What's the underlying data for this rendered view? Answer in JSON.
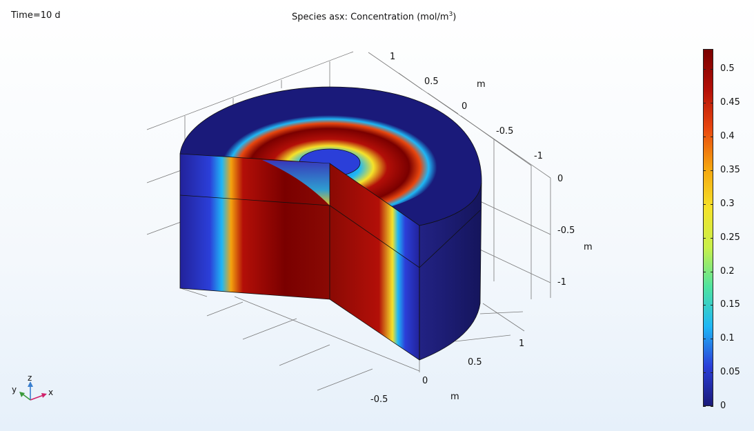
{
  "header": {
    "time_label": "Time=10 d",
    "plot_title_prefix": "Species asx:  Concentration (mol/m",
    "plot_title_sup": "3",
    "plot_title_suffix": ")"
  },
  "axes": {
    "unit": "m",
    "back_y_ticks": [
      "1",
      "0.5",
      "0",
      "-0.5",
      "-1"
    ],
    "right_z_ticks": [
      "0",
      "-0.5",
      "-1"
    ],
    "front_x_ticks": [
      "1",
      "0.5",
      "0",
      "-0.5"
    ]
  },
  "colorbar": {
    "min": 0,
    "max": 0.53,
    "tick_labels": [
      "0.5",
      "0.45",
      "0.4",
      "0.35",
      "0.3",
      "0.25",
      "0.2",
      "0.15",
      "0.1",
      "0.05",
      "0"
    ],
    "tick_values": [
      0.5,
      0.45,
      0.4,
      0.35,
      0.3,
      0.25,
      0.2,
      0.15,
      0.1,
      0.05,
      0
    ],
    "colormap": "rainbow",
    "colors": [
      "#1a1a7a",
      "#2b3fd9",
      "#1fb7f5",
      "#4fe3a0",
      "#c8f04a",
      "#f5e22a",
      "#f5a40e",
      "#e8470f",
      "#b30f08",
      "#7a0000"
    ]
  },
  "triad": {
    "x_label": "x",
    "y_label": "y",
    "z_label": "z",
    "x_color": "#d0206a",
    "y_color": "#3a9a3a",
    "z_color": "#3a7fd0"
  }
}
